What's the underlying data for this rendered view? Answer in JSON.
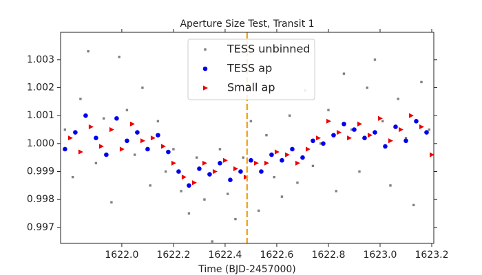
{
  "chart_data": {
    "type": "scatter",
    "title": "Aperture Size Test, Transit 1",
    "x_label": "Time (BJD-2457000)",
    "xlim": [
      1621.763,
      1623.208
    ],
    "ylim": [
      0.99643,
      1.00398
    ],
    "xticks": [
      {
        "value": 1622.0,
        "label": "1622.0"
      },
      1622.2,
      1622.4,
      1622.6,
      1622.8,
      {
        "value": 1623.0,
        "label": "1623.0"
      },
      1623.2
    ],
    "yticks": [
      0.997,
      0.998,
      0.999,
      {
        "value": 1.0,
        "label": "1.000"
      },
      1.001,
      1.002,
      1.003
    ],
    "vline": {
      "x": 1622.485,
      "color": "#f5a623"
    },
    "legend": "upper center",
    "series": [
      {
        "name": "TESS unbinned",
        "color": "#555555",
        "marker": "square",
        "x": [
          1621.78,
          1621.81,
          1621.84,
          1621.87,
          1621.9,
          1621.93,
          1621.96,
          1621.99,
          1622.02,
          1622.05,
          1622.08,
          1622.11,
          1622.14,
          1622.17,
          1622.2,
          1622.23,
          1622.26,
          1622.29,
          1622.32,
          1622.35,
          1622.38,
          1622.41,
          1622.44,
          1622.47,
          1622.5,
          1622.53,
          1622.56,
          1622.59,
          1622.62,
          1622.65,
          1622.68,
          1622.71,
          1622.74,
          1622.77,
          1622.8,
          1622.83,
          1622.86,
          1622.89,
          1622.92,
          1622.95,
          1622.98,
          1623.01,
          1623.04,
          1623.07,
          1623.1,
          1623.13,
          1623.16,
          1623.19
        ],
        "values": [
          1.0005,
          0.9988,
          1.0016,
          1.0033,
          0.9993,
          1.0009,
          0.9979,
          1.0031,
          1.0012,
          0.9996,
          1.002,
          0.9985,
          1.0008,
          0.999,
          0.9998,
          0.9983,
          0.9975,
          0.9995,
          0.998,
          0.9965,
          0.9998,
          0.9982,
          0.9973,
          0.9995,
          1.0008,
          0.9976,
          1.0003,
          0.9988,
          0.9981,
          1.001,
          0.9986,
          1.0019,
          0.9992,
          1.0,
          1.0012,
          0.9983,
          1.0025,
          1.0005,
          0.999,
          1.002,
          1.003,
          1.0008,
          0.9985,
          1.0016,
          1.0002,
          0.9978,
          1.0022,
          1.0005
        ]
      },
      {
        "name": "TESS ap",
        "color": "#0000ee",
        "marker": "circle",
        "x": [
          1621.78,
          1621.82,
          1621.86,
          1621.9,
          1621.94,
          1621.98,
          1622.02,
          1622.06,
          1622.1,
          1622.14,
          1622.18,
          1622.22,
          1622.26,
          1622.3,
          1622.34,
          1622.38,
          1622.42,
          1622.46,
          1622.5,
          1622.54,
          1622.58,
          1622.62,
          1622.66,
          1622.7,
          1622.74,
          1622.78,
          1622.82,
          1622.86,
          1622.9,
          1622.94,
          1622.98,
          1623.02,
          1623.06,
          1623.1,
          1623.14,
          1623.18
        ],
        "values": [
          0.9998,
          1.0004,
          1.001,
          1.0002,
          0.9996,
          1.0009,
          1.0001,
          1.0004,
          0.9998,
          1.0003,
          0.9997,
          0.999,
          0.9985,
          0.9991,
          0.9989,
          0.9993,
          0.9987,
          0.999,
          0.9994,
          0.999,
          0.9996,
          0.9994,
          0.9998,
          0.9995,
          1.0001,
          1.0,
          1.0003,
          1.0007,
          1.0005,
          1.0002,
          1.0004,
          0.9999,
          1.0006,
          1.0001,
          1.0008,
          1.0004
        ]
      },
      {
        "name": "Small ap",
        "color": "#ee0000",
        "marker": "triangle-right",
        "x": [
          1621.8,
          1621.84,
          1621.88,
          1621.92,
          1621.96,
          1622.0,
          1622.04,
          1622.08,
          1622.12,
          1622.16,
          1622.2,
          1622.24,
          1622.28,
          1622.32,
          1622.36,
          1622.4,
          1622.44,
          1622.48,
          1622.52,
          1622.56,
          1622.6,
          1622.64,
          1622.68,
          1622.72,
          1622.76,
          1622.8,
          1622.84,
          1622.88,
          1622.92,
          1622.96,
          1623.0,
          1623.04,
          1623.08,
          1623.12,
          1623.16,
          1623.2
        ],
        "values": [
          1.0002,
          0.9997,
          1.0006,
          0.9999,
          1.0005,
          0.9998,
          1.0007,
          1.0001,
          1.0002,
          0.9999,
          0.9993,
          0.9988,
          0.9986,
          0.9993,
          0.999,
          0.9994,
          0.9991,
          0.9988,
          0.9993,
          0.9993,
          0.9997,
          0.9996,
          0.9993,
          0.9998,
          1.0002,
          1.0008,
          1.0004,
          1.0002,
          1.0007,
          1.0003,
          1.0009,
          1.0001,
          1.0005,
          1.001,
          1.0006,
          0.9996
        ]
      }
    ]
  }
}
